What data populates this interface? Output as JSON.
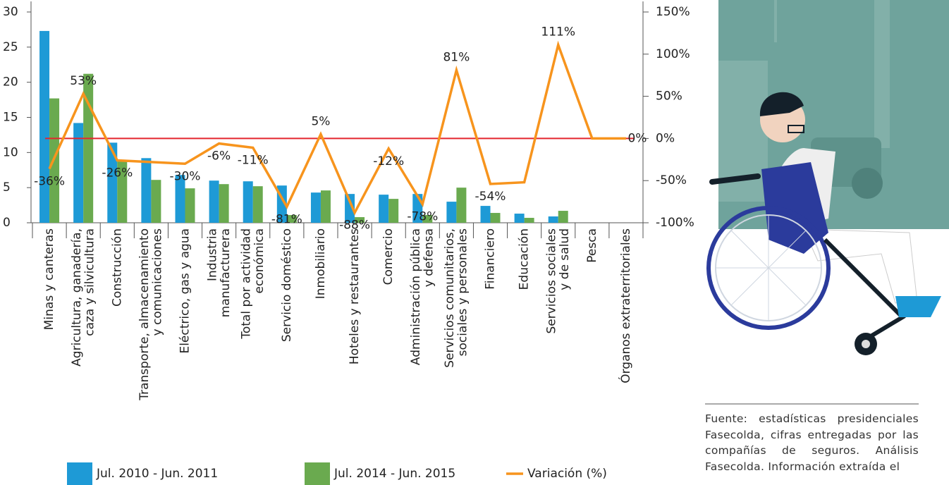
{
  "chart_data": {
    "type": "bar-line",
    "categories": [
      "Minas y canteras",
      "Agricultura, ganadería,\ncaza y silvicultura",
      "Construcción",
      "Transporte, almacenamiento\ny comunicaciones",
      "Eléctrico, gas y agua",
      "Industria\nmanufacturera",
      "Total por actividad\neconómica",
      "Servicio doméstico",
      "Inmobiliario",
      "Hoteles y restaurantes",
      "Comercio",
      "Administración pública\ny defensa",
      "Servicios comunitarios,\nsociales y personales",
      "Financiero",
      "Educación",
      "Servicios sociales\ny de salud",
      "Pesca",
      "Órganos extraterritoriales"
    ],
    "series": [
      {
        "name": "Jul. 2010 - Jun. 2011",
        "type": "bar",
        "color": "#1e9ad6",
        "values": [
          27.3,
          14.2,
          11.4,
          9.2,
          6.8,
          6.0,
          5.9,
          5.3,
          4.3,
          4.1,
          4.0,
          4.1,
          3.0,
          2.4,
          1.3,
          0.9,
          0,
          0
        ]
      },
      {
        "name": "Jul. 2014 - Jun. 2015",
        "type": "bar",
        "color": "#6aaa4f",
        "values": [
          17.7,
          21.2,
          8.8,
          6.1,
          4.9,
          5.5,
          5.2,
          1.1,
          4.6,
          0.8,
          3.4,
          1.1,
          5.0,
          1.4,
          0.7,
          1.7,
          0,
          0
        ]
      },
      {
        "name": "Variación (%)",
        "type": "line",
        "axis": "y2",
        "color": "#f7941d",
        "values": [
          -36,
          53,
          -26,
          -28,
          -30,
          -6,
          -11,
          -81,
          5,
          -88,
          -12,
          -78,
          81,
          -54,
          -52,
          111,
          0,
          0
        ],
        "value_labels": [
          "-36%",
          "53%",
          "-26%",
          null,
          "-30%",
          "-6%",
          "-11%",
          "-81%",
          "5%",
          "-88%",
          "-12%",
          "-78%",
          "81%",
          "-54%",
          null,
          "111%",
          null,
          "0%"
        ]
      }
    ],
    "ylim": [
      0,
      30
    ],
    "yticks": [
      0,
      5,
      10,
      15,
      20,
      25,
      30
    ],
    "y2lim": [
      -100,
      150
    ],
    "y2ticks": [
      {
        "value": -100,
        "label": "-100%"
      },
      {
        "value": -50,
        "label": "-50%"
      },
      {
        "value": 0,
        "label": "0%"
      },
      {
        "value": 50,
        "label": "50%"
      },
      {
        "value": 100,
        "label": "100%"
      },
      {
        "value": 150,
        "label": "150%"
      }
    ],
    "hline": {
      "axis": "y2",
      "value": 0,
      "color": "#e3262e"
    },
    "legend": "bottom"
  },
  "source": "Fuente: estadísticas presidenciales Fasecolda, cifras entregadas por las compañías de seguros. Análisis Fasecolda. Información extraída el"
}
